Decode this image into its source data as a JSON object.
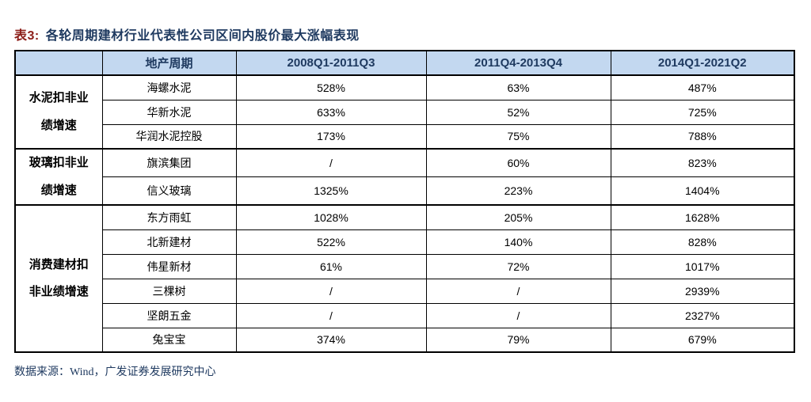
{
  "title": {
    "prefix": "表3:",
    "text": "各轮周期建材行业代表性公司区间内股价最大涨幅表现"
  },
  "table": {
    "headers": [
      "",
      "地产周期",
      "2008Q1-2011Q3",
      "2011Q4-2013Q4",
      "2014Q1-2021Q2"
    ],
    "groups": [
      {
        "label": "水泥扣非业\n绩增速",
        "rows": [
          {
            "company": "海螺水泥",
            "values": [
              "528%",
              "63%",
              "487%"
            ]
          },
          {
            "company": "华新水泥",
            "values": [
              "633%",
              "52%",
              "725%"
            ]
          },
          {
            "company": "华润水泥控股",
            "values": [
              "173%",
              "75%",
              "788%"
            ]
          }
        ]
      },
      {
        "label": "玻璃扣非业\n绩增速",
        "rows": [
          {
            "company": "旗滨集团",
            "values": [
              "/",
              "60%",
              "823%"
            ]
          },
          {
            "company": "信义玻璃",
            "values": [
              "1325%",
              "223%",
              "1404%"
            ]
          }
        ]
      },
      {
        "label": "消费建材扣\n非业绩增速",
        "rows": [
          {
            "company": "东方雨虹",
            "values": [
              "1028%",
              "205%",
              "1628%"
            ]
          },
          {
            "company": "北新建材",
            "values": [
              "522%",
              "140%",
              "828%"
            ]
          },
          {
            "company": "伟星新材",
            "values": [
              "61%",
              "72%",
              "1017%"
            ]
          },
          {
            "company": "三棵树",
            "values": [
              "/",
              "/",
              "2939%"
            ]
          },
          {
            "company": "坚朗五金",
            "values": [
              "/",
              "/",
              "2327%"
            ]
          },
          {
            "company": "兔宝宝",
            "values": [
              "374%",
              "79%",
              "679%"
            ]
          }
        ]
      }
    ]
  },
  "footer": {
    "source": "数据来源：Wind，广发证券发展研究中心"
  },
  "colors": {
    "title_navy": "#1F3A60",
    "title_prefix_red": "#8C1D18",
    "header_bg": "#C3D8F0",
    "header_text": "#1F3A60",
    "grid_border": "#000000",
    "body_text": "#000000"
  }
}
